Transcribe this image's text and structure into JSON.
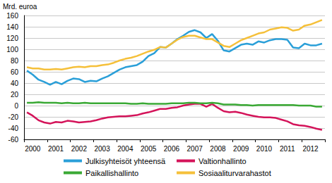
{
  "chart_data": {
    "type": "line",
    "y_label": "Mrd. euroa",
    "categories": [
      null,
      "2000",
      null,
      null,
      null,
      "2001",
      null,
      null,
      null,
      "2002",
      null,
      null,
      null,
      "2003",
      null,
      null,
      null,
      "2004",
      null,
      null,
      null,
      "2005",
      null,
      null,
      null,
      "2006",
      null,
      null,
      null,
      "2007",
      null,
      null,
      null,
      "2008",
      null,
      null,
      null,
      "2009",
      null,
      null,
      null,
      "2010",
      null,
      null,
      null,
      "2011",
      null,
      null,
      null,
      "2012",
      null,
      null
    ],
    "series": [
      {
        "name": "Julkisyhteisöt yhteensä",
        "color": "#2a9fd8",
        "values": [
          62,
          55,
          46,
          42,
          37,
          42,
          38,
          44,
          48,
          47,
          42,
          44,
          43,
          48,
          52,
          58,
          64,
          68,
          70,
          72,
          78,
          88,
          93,
          104,
          103,
          110,
          118,
          124,
          131,
          134,
          130,
          120,
          127,
          115,
          98,
          96,
          102,
          108,
          110,
          108,
          114,
          112,
          116,
          118,
          118,
          117,
          103,
          102,
          110,
          107,
          107,
          110
        ]
      },
      {
        "name": "Valtionhallinto",
        "color": "#d4145a",
        "values": [
          -12,
          -18,
          -26,
          -30,
          -32,
          -29,
          -30,
          -27,
          -28,
          -30,
          -29,
          -28,
          -26,
          -23,
          -21,
          -20,
          -19,
          -19,
          -18,
          -17,
          -14,
          -12,
          -9,
          -6,
          -6,
          -4,
          -3,
          0,
          2,
          3,
          3,
          -2,
          3,
          -4,
          -10,
          -12,
          -11,
          -13,
          -16,
          -18,
          -20,
          -21,
          -21,
          -22,
          -25,
          -28,
          -33,
          -35,
          -36,
          -38,
          -41,
          -43
        ]
      },
      {
        "name": "Paikallishallinto",
        "color": "#3aa935",
        "values": [
          5,
          5,
          6,
          5,
          5,
          5,
          4,
          5,
          4,
          4,
          5,
          4,
          4,
          4,
          4,
          4,
          4,
          4,
          3,
          3,
          4,
          3,
          3,
          3,
          3,
          4,
          4,
          4,
          5,
          5,
          4,
          4,
          5,
          4,
          2,
          2,
          2,
          1,
          1,
          0,
          1,
          1,
          1,
          1,
          1,
          1,
          1,
          0,
          0,
          0,
          -2,
          -2
        ]
      },
      {
        "name": "Sosiaaliturvarahastot",
        "color": "#f5c03a",
        "values": [
          68,
          66,
          66,
          64,
          64,
          65,
          64,
          66,
          68,
          69,
          68,
          70,
          70,
          72,
          73,
          76,
          80,
          83,
          85,
          88,
          92,
          96,
          99,
          104,
          103,
          110,
          117,
          122,
          124,
          124,
          121,
          118,
          118,
          112,
          106,
          104,
          110,
          116,
          120,
          124,
          128,
          130,
          135,
          137,
          139,
          138,
          133,
          135,
          142,
          144,
          148,
          152
        ]
      }
    ],
    "ylim": [
      -60,
      160
    ],
    "yticks": [
      -60,
      -40,
      -20,
      0,
      20,
      40,
      60,
      80,
      100,
      120,
      140,
      160
    ],
    "grid": true,
    "legend": "bottom"
  }
}
